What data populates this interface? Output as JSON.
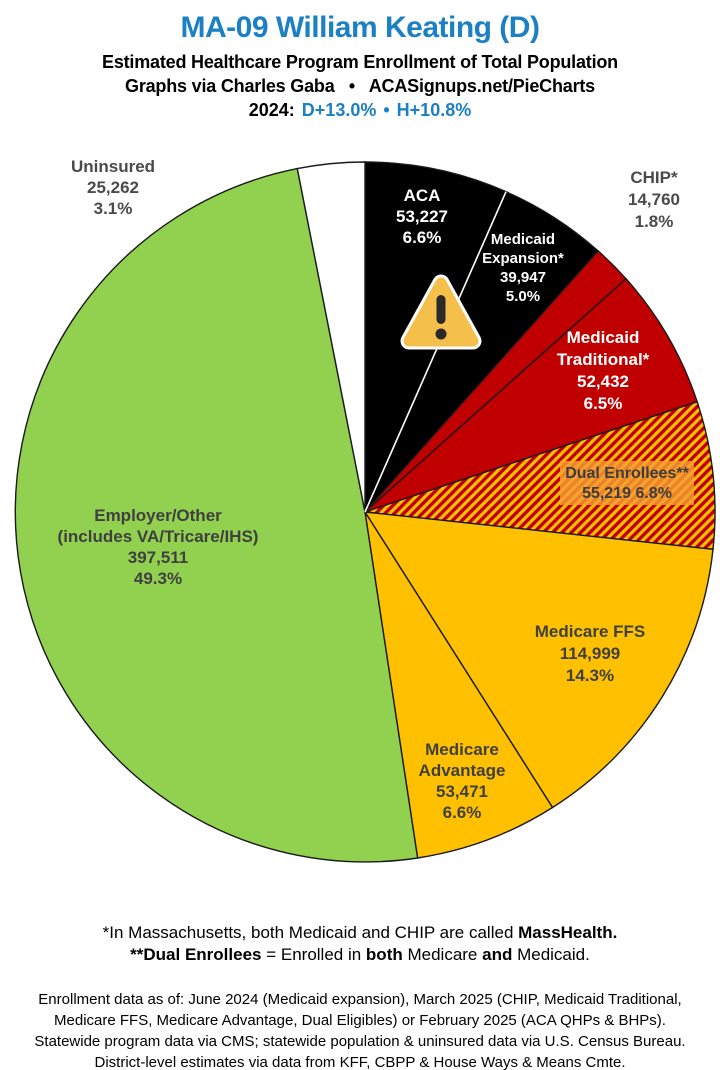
{
  "header": {
    "title": "MA-09 William Keating (D)",
    "subtitle": "Estimated Healthcare Program Enrollment of Total Population",
    "credit": "Graphs via Charles Gaba   •   ACASignups.net/PieCharts",
    "year_label": "2024:",
    "dem_lean": "D+13.0%",
    "bullet": "•",
    "house_vote": "H+10.8%"
  },
  "colors": {
    "title_blue": "#1B80C4",
    "pie_black": "#000000",
    "pie_red": "#C00000",
    "pie_gold": "#FFC000",
    "pie_green": "#92D050",
    "pie_white": "#FFFFFF",
    "slice_border": "#1a1a1a",
    "dark_label": "#404040",
    "outside_label": "#4a4a4a",
    "dual_label_box": "#F59E36",
    "warning_amber": "#F4C04B"
  },
  "chart_data": {
    "type": "pie",
    "title": "MA-09 William Keating (D)",
    "subtitle": "Estimated Healthcare Program Enrollment of Total Population",
    "start_angle_deg": 0,
    "direction": "clockwise",
    "slices": [
      {
        "label": "ACA",
        "label_lines": [
          "ACA"
        ],
        "value": 53227,
        "value_str": "53,227",
        "pct": 6.6,
        "pct_str": "6.6%",
        "color": "#000000",
        "text_color": "#FFFFFF"
      },
      {
        "label": "Medicaid Expansion*",
        "label_lines": [
          "Medicaid",
          "Expansion*"
        ],
        "value": 39947,
        "value_str": "39,947",
        "pct": 5.0,
        "pct_str": "5.0%",
        "color": "#000000",
        "text_color": "#FFFFFF"
      },
      {
        "label": "CHIP*",
        "label_lines": [
          "CHIP*"
        ],
        "value": 14760,
        "value_str": "14,760",
        "pct": 1.8,
        "pct_str": "1.8%",
        "color": "#C00000",
        "text_color": "#4a4a4a"
      },
      {
        "label": "Medicaid Traditional*",
        "label_lines": [
          "Medicaid",
          "Traditional*"
        ],
        "value": 52432,
        "value_str": "52,432",
        "pct": 6.5,
        "pct_str": "6.5%",
        "color": "#C00000",
        "text_color": "#FFFFFF"
      },
      {
        "label": "Dual Enrollees**",
        "label_lines": [
          "Dual Enrollees**"
        ],
        "value": 55219,
        "value_str": "55,219",
        "pct": 6.8,
        "pct_str": "6.8%",
        "color": "#C00000",
        "pattern": "hatch-red-gold",
        "text_color": "#3d3d3d"
      },
      {
        "label": "Medicare FFS",
        "label_lines": [
          "Medicare FFS"
        ],
        "value": 114999,
        "value_str": "114,999",
        "pct": 14.3,
        "pct_str": "14.3%",
        "color": "#FFC000",
        "text_color": "#404040"
      },
      {
        "label": "Medicare Advantage",
        "label_lines": [
          "Medicare",
          "Advantage"
        ],
        "value": 53471,
        "value_str": "53,471",
        "pct": 6.6,
        "pct_str": "6.6%",
        "color": "#FFC000",
        "text_color": "#404040"
      },
      {
        "label": "Employer/Other (includes VA/Tricare/IHS)",
        "label_lines": [
          "Employer/Other",
          "(includes VA/Tricare/IHS)"
        ],
        "value": 397511,
        "value_str": "397,511",
        "pct": 49.3,
        "pct_str": "49.3%",
        "color": "#92D050",
        "text_color": "#404040"
      },
      {
        "label": "Uninsured",
        "label_lines": [
          "Uninsured"
        ],
        "value": 25262,
        "value_str": "25,262",
        "pct": 3.1,
        "pct_str": "3.1%",
        "color": "#FFFFFF",
        "text_color": "#4a4a4a"
      }
    ]
  },
  "footnotes": {
    "line1": [
      {
        "t": "*In Massachusetts, both Medicaid and CHIP are called ",
        "b": false
      },
      {
        "t": "MassHealth.",
        "b": true
      }
    ],
    "line2": [
      {
        "t": "**Dual Enrollees",
        "b": true
      },
      {
        "t": " = Enrolled in ",
        "b": false
      },
      {
        "t": "both",
        "b": true
      },
      {
        "t": " Medicare ",
        "b": false
      },
      {
        "t": "and",
        "b": true
      },
      {
        "t": " Medicaid.",
        "b": false
      }
    ],
    "source_lines": [
      "Enrollment data as of: June 2024 (Medicaid expansion), March 2025 (CHIP, Medicaid Traditional,",
      "Medicare FFS, Medicare Advantage, Dual Eligibles) or February 2025 (ACA QHPs & BHPs).",
      "Statewide program data via CMS; statewide population & uninsured data via U.S. Census Bureau.",
      "District-level estimates via data from KFF, CBPP & House Ways & Means Cmte."
    ]
  }
}
